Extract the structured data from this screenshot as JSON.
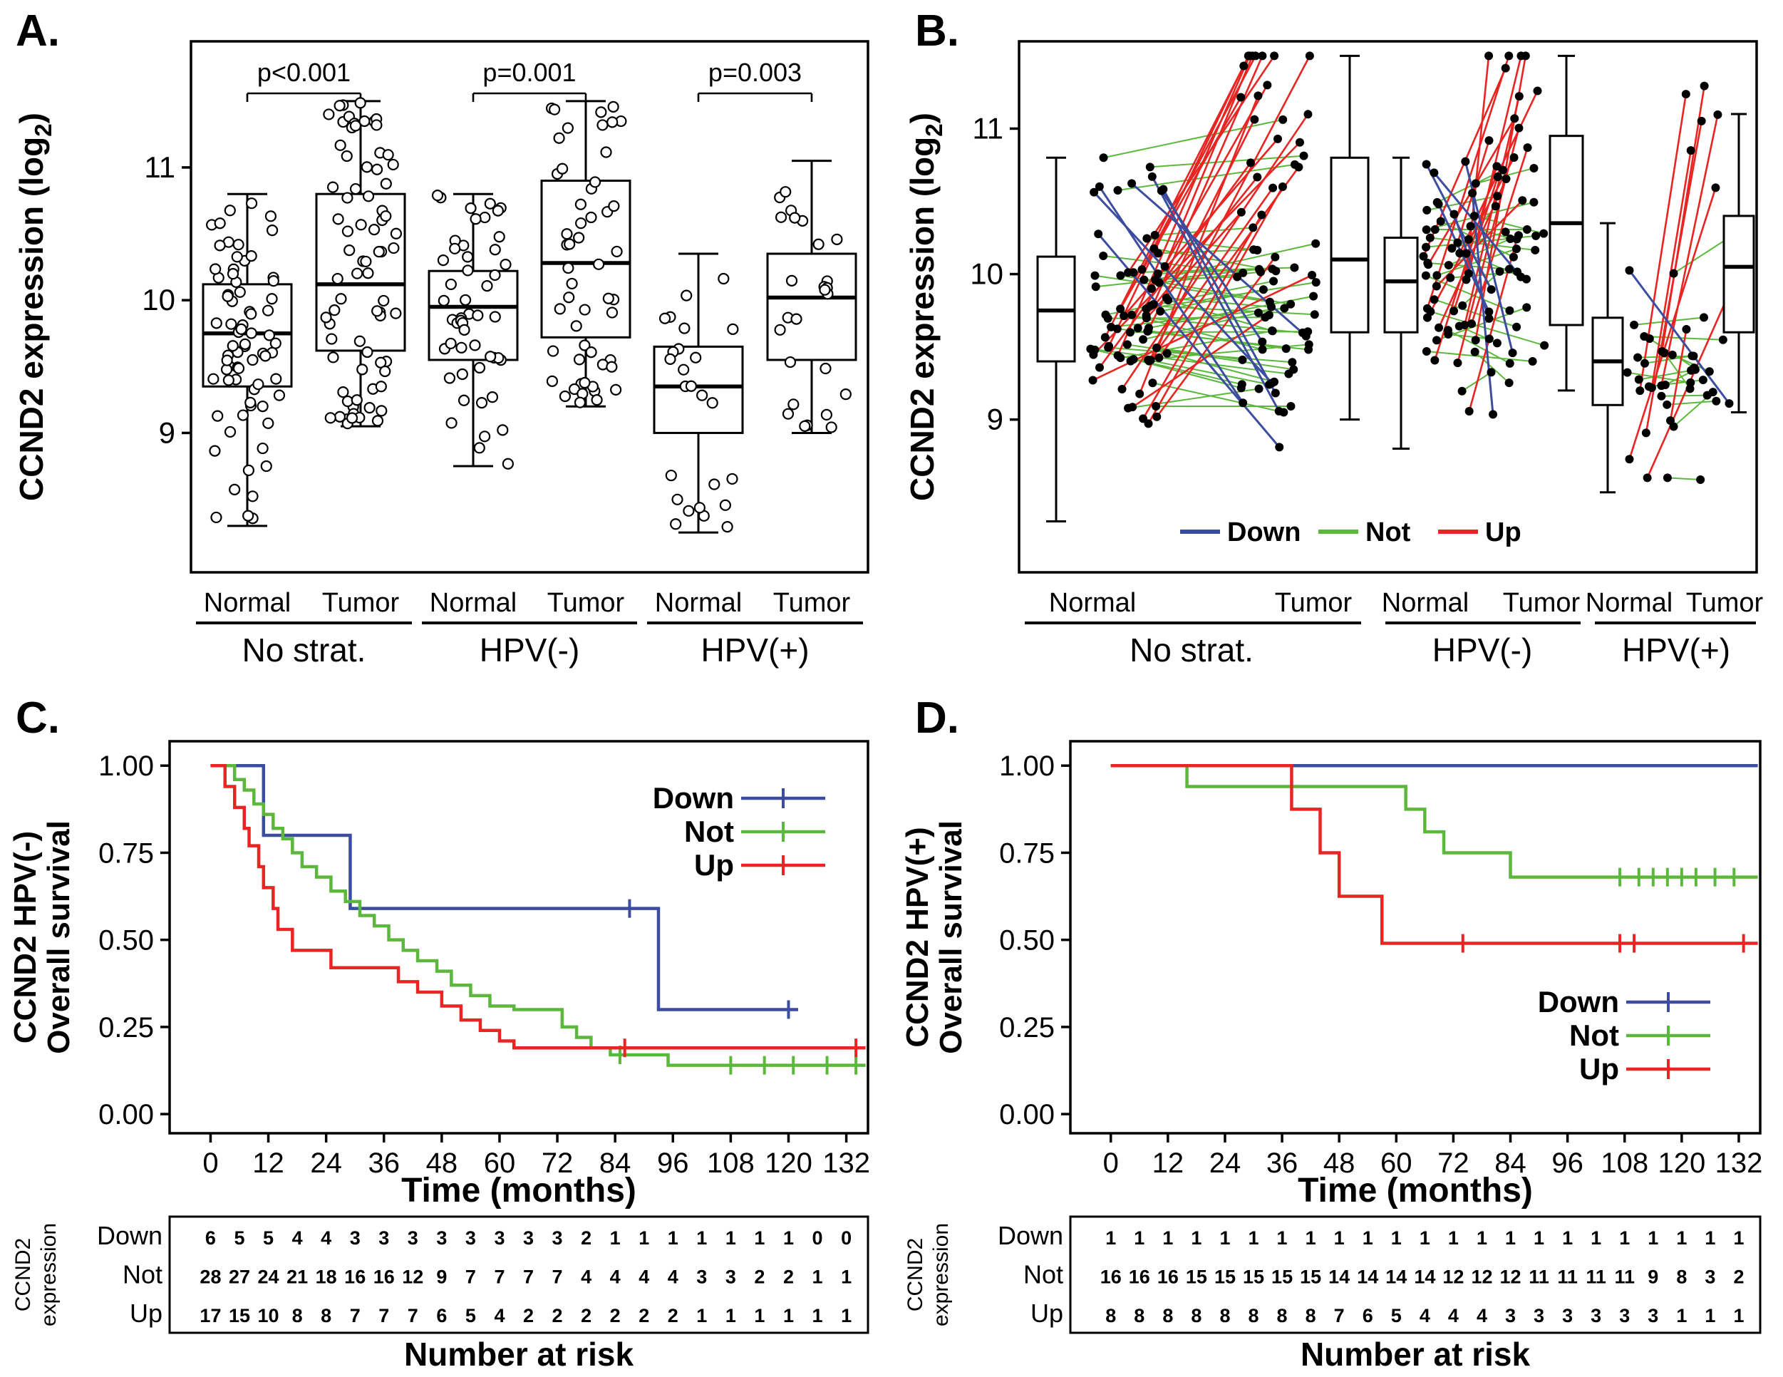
{
  "panels": {
    "a": {
      "label": "A."
    },
    "b": {
      "label": "B."
    },
    "c": {
      "label": "C."
    },
    "d": {
      "label": "D."
    }
  },
  "colors": {
    "down": "#3c4da0",
    "not": "#5cb83c",
    "up": "#e82522",
    "axis": "#000000"
  },
  "chart_data": [
    {
      "id": "A",
      "type": "box-jitter",
      "ylabel": "CCND2 expression (log2)",
      "ylim": [
        7.95,
        11.95
      ],
      "yticks": [
        9,
        10,
        11
      ],
      "conditions": [
        "Normal",
        "Tumor"
      ],
      "groups": [
        {
          "name": "No strat.",
          "pvalue": "p<0.001",
          "boxes": [
            {
              "condition": "Normal",
              "n": 72,
              "whisker_low": 8.3,
              "q1": 9.35,
              "median": 9.75,
              "q3": 10.12,
              "whisker_high": 10.8
            },
            {
              "condition": "Tumor",
              "n": 76,
              "whisker_low": 9.05,
              "q1": 9.62,
              "median": 10.12,
              "q3": 10.8,
              "whisker_high": 11.5
            }
          ]
        },
        {
          "name": "HPV(-)",
          "pvalue": "p=0.001",
          "boxes": [
            {
              "condition": "Normal",
              "n": 50,
              "whisker_low": 8.75,
              "q1": 9.55,
              "median": 9.95,
              "q3": 10.22,
              "whisker_high": 10.8
            },
            {
              "condition": "Tumor",
              "n": 52,
              "whisker_low": 9.2,
              "q1": 9.72,
              "median": 10.28,
              "q3": 10.9,
              "whisker_high": 11.5
            }
          ]
        },
        {
          "name": "HPV(+)",
          "pvalue": "p=0.003",
          "boxes": [
            {
              "condition": "Normal",
              "n": 25,
              "whisker_low": 8.25,
              "q1": 9.0,
              "median": 9.35,
              "q3": 9.65,
              "whisker_high": 10.35
            },
            {
              "condition": "Tumor",
              "n": 26,
              "whisker_low": 9.0,
              "q1": 9.55,
              "median": 10.02,
              "q3": 10.35,
              "whisker_high": 11.05
            }
          ]
        }
      ]
    },
    {
      "id": "B",
      "type": "paired-lines",
      "ylabel": "CCND2 expression (log2)",
      "ylim": [
        7.95,
        11.6
      ],
      "yticks": [
        9,
        10,
        11
      ],
      "conditions": [
        "Normal",
        "Tumor"
      ],
      "legend": [
        {
          "label": "Down",
          "color_key": "down"
        },
        {
          "label": "Not",
          "color_key": "not"
        },
        {
          "label": "Up",
          "color_key": "up"
        }
      ],
      "groups": [
        {
          "name": "No strat.",
          "pairs": {
            "down": 7,
            "not": 44,
            "up": 25
          },
          "normal_box": {
            "whisker_low": 8.3,
            "q1": 9.4,
            "median": 9.75,
            "q3": 10.12,
            "whisker_high": 10.8
          },
          "tumor_box": {
            "whisker_low": 9.0,
            "q1": 9.6,
            "median": 10.1,
            "q3": 10.8,
            "whisker_high": 11.5
          }
        },
        {
          "name": "HPV(-)",
          "pairs": {
            "down": 6,
            "not": 28,
            "up": 17
          },
          "normal_box": {
            "whisker_low": 8.8,
            "q1": 9.6,
            "median": 9.95,
            "q3": 10.25,
            "whisker_high": 10.8
          },
          "tumor_box": {
            "whisker_low": 9.2,
            "q1": 9.65,
            "median": 10.35,
            "q3": 10.95,
            "whisker_high": 11.5
          }
        },
        {
          "name": "HPV(+)",
          "pairs": {
            "down": 1,
            "not": 16,
            "up": 8
          },
          "normal_box": {
            "whisker_low": 8.5,
            "q1": 9.1,
            "median": 9.4,
            "q3": 9.7,
            "whisker_high": 10.35
          },
          "tumor_box": {
            "whisker_low": 9.05,
            "q1": 9.6,
            "median": 10.05,
            "q3": 10.4,
            "whisker_high": 11.1
          }
        }
      ]
    },
    {
      "id": "C",
      "type": "km",
      "ylabel_lines": [
        "CCND2 HPV(-)",
        "Overall survival"
      ],
      "xlabel": "Time (months)",
      "xticks": [
        0,
        12,
        24,
        36,
        48,
        60,
        72,
        84,
        96,
        108,
        120,
        132
      ],
      "yticks": [
        "1.00",
        "0.75",
        "0.50",
        "0.25",
        "0.00"
      ],
      "legend_position": "top-right",
      "series": [
        {
          "name": "Down",
          "color_key": "down",
          "steps": [
            [
              11,
              0.8
            ],
            [
              29,
              0.59
            ],
            [
              93,
              0.3
            ]
          ],
          "end_time": 122,
          "censors": [
            [
              87,
              0.59
            ],
            [
              120,
              0.3
            ]
          ]
        },
        {
          "name": "Not",
          "color_key": "not",
          "steps": [
            [
              5,
              0.96
            ],
            [
              7,
              0.93
            ],
            [
              9,
              0.89
            ],
            [
              11,
              0.86
            ],
            [
              13,
              0.82
            ],
            [
              15,
              0.79
            ],
            [
              17,
              0.75
            ],
            [
              19,
              0.71
            ],
            [
              22,
              0.68
            ],
            [
              25,
              0.64
            ],
            [
              28,
              0.61
            ],
            [
              31,
              0.57
            ],
            [
              34,
              0.54
            ],
            [
              37,
              0.5
            ],
            [
              40,
              0.47
            ],
            [
              43,
              0.44
            ],
            [
              47,
              0.41
            ],
            [
              50,
              0.37
            ],
            [
              54,
              0.34
            ],
            [
              58,
              0.31
            ],
            [
              63,
              0.3
            ],
            [
              73,
              0.25
            ],
            [
              76,
              0.22
            ],
            [
              79,
              0.19
            ],
            [
              83,
              0.17
            ],
            [
              95,
              0.14
            ]
          ],
          "end_time": 136,
          "censors": [
            [
              85,
              0.17
            ],
            [
              108,
              0.14
            ],
            [
              115,
              0.14
            ],
            [
              121,
              0.14
            ],
            [
              128,
              0.14
            ],
            [
              134,
              0.14
            ]
          ]
        },
        {
          "name": "Up",
          "color_key": "up",
          "steps": [
            [
              3,
              0.94
            ],
            [
              5,
              0.88
            ],
            [
              7,
              0.82
            ],
            [
              8,
              0.77
            ],
            [
              10,
              0.71
            ],
            [
              11,
              0.65
            ],
            [
              13,
              0.59
            ],
            [
              14,
              0.53
            ],
            [
              17,
              0.47
            ],
            [
              25,
              0.42
            ],
            [
              39,
              0.38
            ],
            [
              43,
              0.35
            ],
            [
              48,
              0.31
            ],
            [
              52,
              0.27
            ],
            [
              56,
              0.24
            ],
            [
              60,
              0.21
            ],
            [
              63,
              0.19
            ]
          ],
          "end_time": 136,
          "censors": [
            [
              86,
              0.19
            ],
            [
              134,
              0.19
            ]
          ]
        }
      ],
      "risk_table": {
        "side_label": "CCND2 expression",
        "caption": "Number at risk",
        "times": [
          0,
          6,
          12,
          18,
          24,
          30,
          36,
          42,
          48,
          54,
          60,
          66,
          72,
          78,
          84,
          90,
          96,
          102,
          108,
          114,
          120,
          126,
          132
        ],
        "rows": [
          {
            "name": "Down",
            "values": [
              6,
              5,
              5,
              4,
              4,
              3,
              3,
              3,
              3,
              3,
              3,
              3,
              3,
              2,
              1,
              1,
              1,
              1,
              1,
              1,
              1,
              0,
              0
            ]
          },
          {
            "name": "Not",
            "values": [
              28,
              27,
              24,
              21,
              18,
              16,
              16,
              12,
              9,
              7,
              7,
              7,
              7,
              4,
              4,
              4,
              4,
              3,
              3,
              2,
              2,
              1,
              1
            ]
          },
          {
            "name": "Up",
            "values": [
              17,
              15,
              10,
              8,
              8,
              7,
              7,
              7,
              6,
              5,
              4,
              2,
              2,
              2,
              2,
              2,
              2,
              1,
              1,
              1,
              1,
              1,
              1
            ]
          }
        ]
      }
    },
    {
      "id": "D",
      "type": "km",
      "ylabel_lines": [
        "CCND2 HPV(+)",
        "Overall survival"
      ],
      "xlabel": "Time (months)",
      "xticks": [
        0,
        12,
        24,
        36,
        48,
        60,
        72,
        84,
        96,
        108,
        120,
        132
      ],
      "yticks": [
        "1.00",
        "0.75",
        "0.50",
        "0.25",
        "0.00"
      ],
      "legend_position": "bottom-right",
      "series": [
        {
          "name": "Down",
          "color_key": "down",
          "steps": [],
          "end_time": 136,
          "censors": []
        },
        {
          "name": "Not",
          "color_key": "not",
          "steps": [
            [
              16,
              0.94
            ],
            [
              62,
              0.875
            ],
            [
              66,
              0.81
            ],
            [
              70,
              0.75
            ],
            [
              84,
              0.68
            ]
          ],
          "end_time": 136,
          "censors": [
            [
              107,
              0.68
            ],
            [
              111,
              0.68
            ],
            [
              114,
              0.68
            ],
            [
              117,
              0.68
            ],
            [
              120,
              0.68
            ],
            [
              123,
              0.68
            ],
            [
              127,
              0.68
            ],
            [
              131,
              0.68
            ]
          ]
        },
        {
          "name": "Up",
          "color_key": "up",
          "steps": [
            [
              38,
              0.875
            ],
            [
              44,
              0.75
            ],
            [
              48,
              0.625
            ],
            [
              57,
              0.49
            ]
          ],
          "end_time": 136,
          "censors": [
            [
              74,
              0.49
            ],
            [
              107,
              0.49
            ],
            [
              110,
              0.49
            ],
            [
              133,
              0.49
            ]
          ]
        }
      ],
      "risk_table": {
        "side_label": "CCND2 expression",
        "caption": "Number at risk",
        "times": [
          0,
          6,
          12,
          18,
          24,
          30,
          36,
          42,
          48,
          54,
          60,
          66,
          72,
          78,
          84,
          90,
          96,
          102,
          108,
          114,
          120,
          126,
          132
        ],
        "rows": [
          {
            "name": "Down",
            "values": [
              1,
              1,
              1,
              1,
              1,
              1,
              1,
              1,
              1,
              1,
              1,
              1,
              1,
              1,
              1,
              1,
              1,
              1,
              1,
              1,
              1,
              1,
              1
            ]
          },
          {
            "name": "Not",
            "values": [
              16,
              16,
              16,
              15,
              15,
              15,
              15,
              15,
              14,
              14,
              14,
              14,
              12,
              12,
              12,
              11,
              11,
              11,
              11,
              9,
              8,
              3,
              2
            ]
          },
          {
            "name": "Up",
            "values": [
              8,
              8,
              8,
              8,
              8,
              8,
              8,
              8,
              7,
              6,
              5,
              4,
              4,
              4,
              3,
              3,
              3,
              3,
              3,
              3,
              1,
              1,
              1
            ]
          }
        ]
      }
    }
  ]
}
